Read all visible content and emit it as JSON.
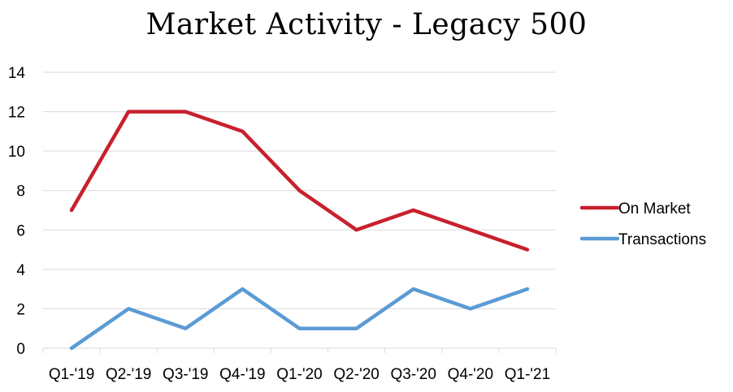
{
  "chart_data": {
    "type": "line",
    "title": "Market Activity - Legacy 500",
    "xlabel": "",
    "ylabel": "",
    "categories": [
      "Q1-'19",
      "Q2-'19",
      "Q3-'19",
      "Q4-'19",
      "Q1-'20",
      "Q2-'20",
      "Q3-'20",
      "Q4-'20",
      "Q1-'21"
    ],
    "ylim": [
      0,
      14
    ],
    "yticks": [
      0,
      2,
      4,
      6,
      8,
      10,
      12,
      14
    ],
    "grid": true,
    "legend_position": "right",
    "series": [
      {
        "name": "On Market",
        "color": "#C8202D",
        "values": [
          7,
          12,
          12,
          11,
          8,
          6,
          7,
          6,
          5
        ]
      },
      {
        "name": "Transactions",
        "color": "#5B9BD5",
        "values": [
          0,
          2,
          1,
          3,
          1,
          1,
          3,
          2,
          3
        ]
      }
    ]
  }
}
